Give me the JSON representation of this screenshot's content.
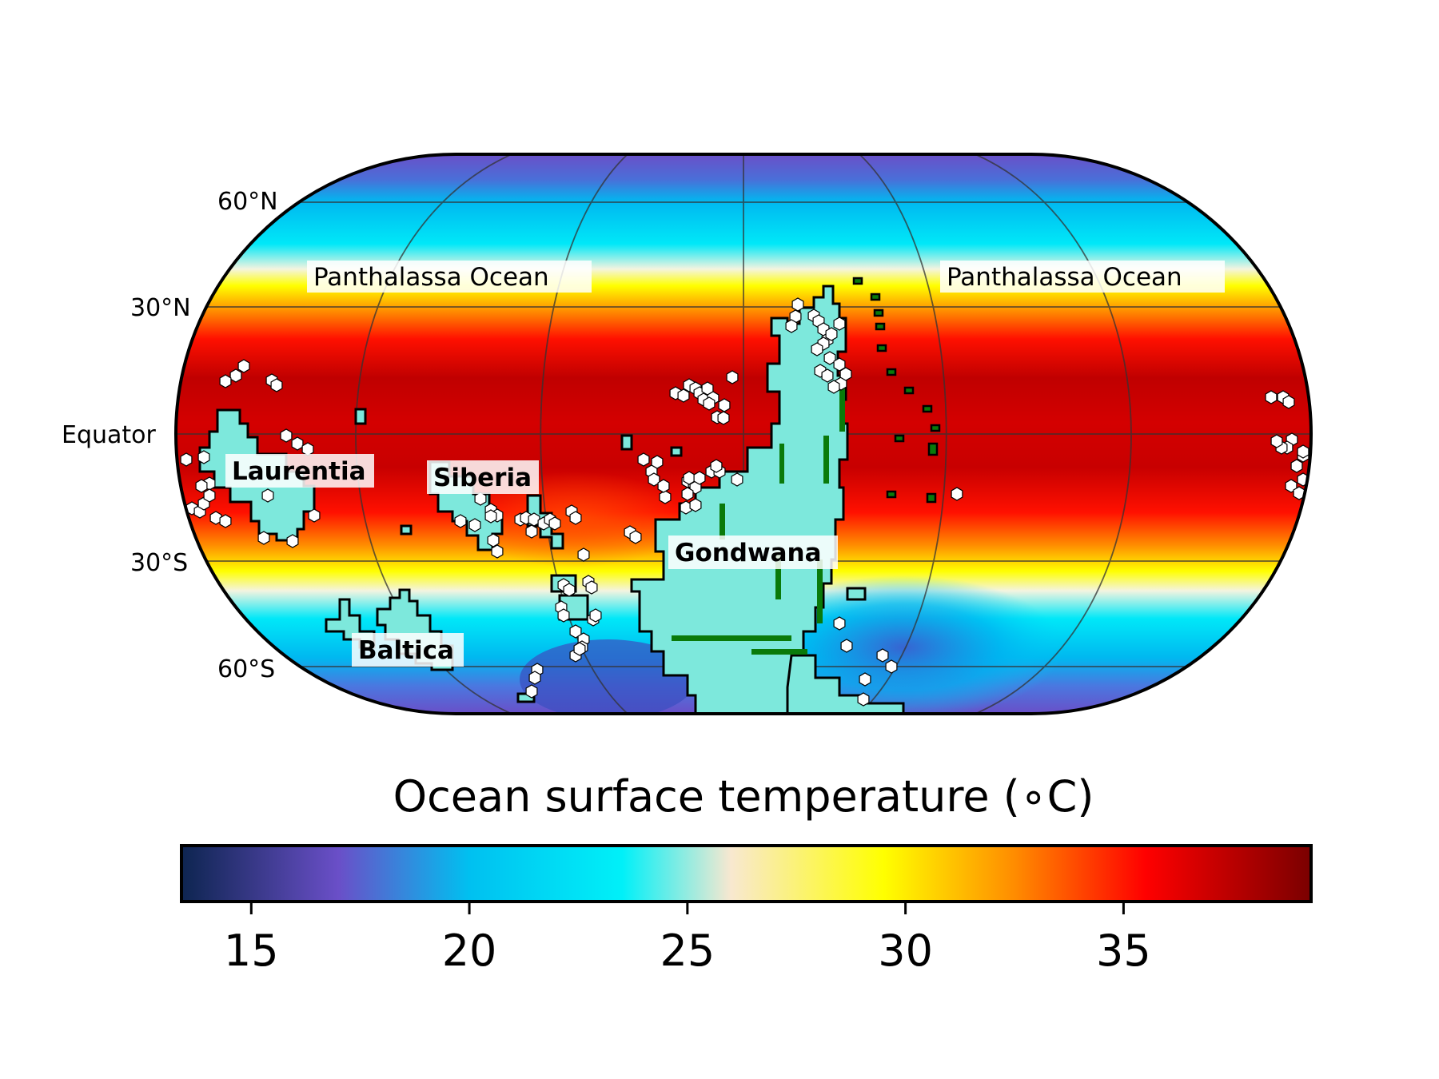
{
  "map": {
    "latitude_labels": {
      "n60": "60°N",
      "n30": "30°N",
      "equator": "Equator",
      "s30": "30°S",
      "s60": "60°S"
    },
    "ocean_labels": {
      "west": "Panthalassa Ocean",
      "east": "Panthalassa Ocean"
    },
    "continent_labels": {
      "laurentia": "Laurentia",
      "siberia": "Siberia",
      "gondwana": "Gondwana",
      "baltica": "Baltica"
    },
    "colors": {
      "land": "#7de8dc",
      "land_outline": "#000000",
      "highland": "#0a7a0a",
      "data_marker": "#ffffff",
      "graticule": "#333333"
    }
  },
  "colorbar": {
    "title": "Ocean surface temperature (∘C)",
    "min": 13.4,
    "max": 39.3,
    "ticks": [
      {
        "value": 15,
        "label": "15"
      },
      {
        "value": 20,
        "label": "20"
      },
      {
        "value": 25,
        "label": "25"
      },
      {
        "value": 30,
        "label": "30"
      },
      {
        "value": 35,
        "label": "35"
      }
    ],
    "stops": [
      {
        "value": 13.4,
        "color": "#0d2550"
      },
      {
        "value": 17.0,
        "color": "#6a4fc8"
      },
      {
        "value": 20.0,
        "color": "#00c0f0"
      },
      {
        "value": 23.5,
        "color": "#00f0f8"
      },
      {
        "value": 26.0,
        "color": "#f8e8d0"
      },
      {
        "value": 29.5,
        "color": "#ffff00"
      },
      {
        "value": 32.5,
        "color": "#ff8c00"
      },
      {
        "value": 35.5,
        "color": "#ff0000"
      },
      {
        "value": 39.3,
        "color": "#7a0000"
      }
    ]
  }
}
